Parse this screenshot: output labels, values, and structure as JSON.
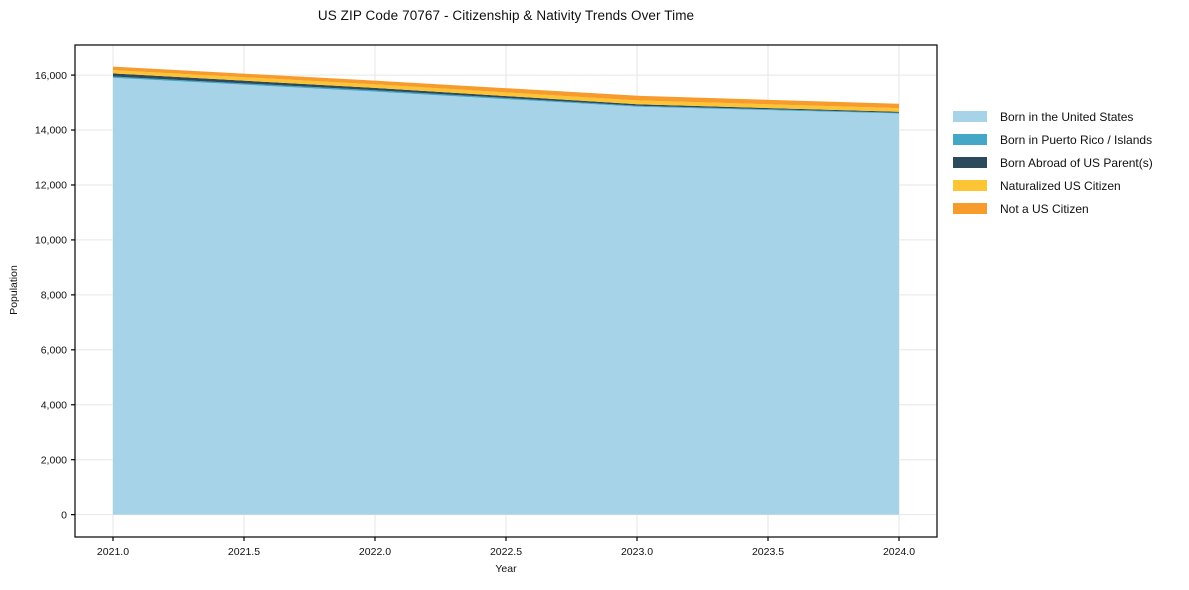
{
  "figure": {
    "background": "#ffffff"
  },
  "chart_data": {
    "type": "area",
    "stacked": true,
    "title": "US ZIP Code 70767 - Citizenship & Nativity Trends Over Time",
    "xlabel": "Year",
    "ylabel": "Population",
    "x": [
      2021,
      2022,
      2023,
      2024
    ],
    "series": [
      {
        "name": "Born in the United States",
        "color": "#a7d3e8",
        "values": [
          15900,
          15400,
          14850,
          14600
        ]
      },
      {
        "name": "Born in Puerto Rico / Islands",
        "color": "#44a7c7",
        "values": [
          50,
          45,
          35,
          30
        ]
      },
      {
        "name": "Born Abroad of US Parent(s)",
        "color": "#2d4a5d",
        "values": [
          110,
          90,
          55,
          35
        ]
      },
      {
        "name": "Naturalized US Citizen",
        "color": "#fdc433",
        "values": [
          120,
          125,
          140,
          130
        ]
      },
      {
        "name": "Not a US Citizen",
        "color": "#f89b2d",
        "values": [
          130,
          140,
          170,
          160
        ]
      }
    ],
    "x_ticks": [
      {
        "label": "2021.0",
        "value": 2021.0
      },
      {
        "label": "2021.5",
        "value": 2021.5
      },
      {
        "label": "2022.0",
        "value": 2022.0
      },
      {
        "label": "2022.5",
        "value": 2022.5
      },
      {
        "label": "2023.0",
        "value": 2023.0
      },
      {
        "label": "2023.5",
        "value": 2023.5
      },
      {
        "label": "2024.0",
        "value": 2024.0
      }
    ],
    "y_ticks": [
      {
        "label": "0",
        "value": 0
      },
      {
        "label": "2,000",
        "value": 2000
      },
      {
        "label": "4,000",
        "value": 4000
      },
      {
        "label": "6,000",
        "value": 6000
      },
      {
        "label": "8,000",
        "value": 8000
      },
      {
        "label": "10,000",
        "value": 10000
      },
      {
        "label": "12,000",
        "value": 12000
      },
      {
        "label": "14,000",
        "value": 14000
      },
      {
        "label": "16,000",
        "value": 16000
      }
    ],
    "xlim": [
      2020.855,
      2024.145
    ],
    "ylim": [
      -814,
      17095
    ],
    "grid": true,
    "gridline_color": "#e6e6e6",
    "spine_color": "#000000",
    "tick_color": "#000000",
    "text_color": "#111111",
    "legend_position": "right"
  }
}
